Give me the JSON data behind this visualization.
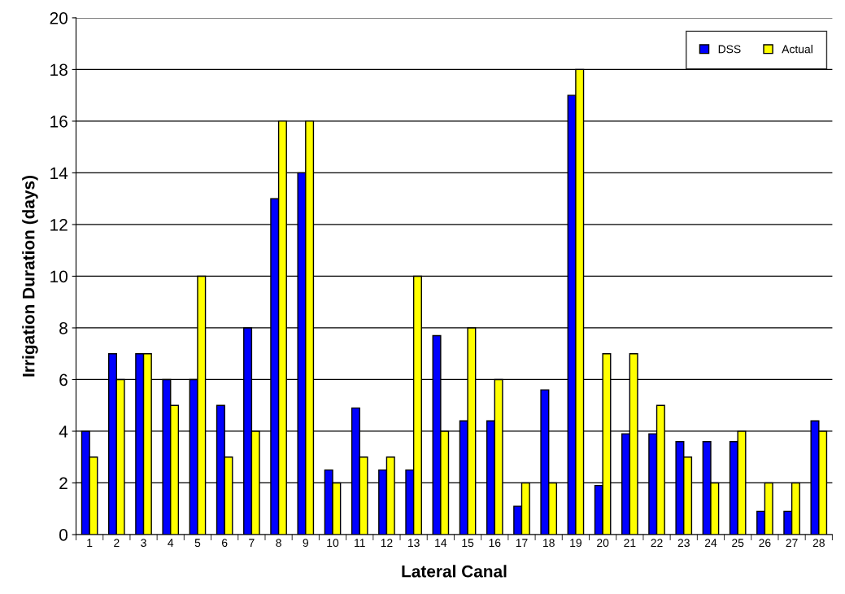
{
  "chart_data": {
    "type": "bar",
    "xlabel": "Lateral Canal",
    "ylabel": "Irrigation Duration (days)",
    "categories": [
      "1",
      "2",
      "3",
      "4",
      "5",
      "6",
      "7",
      "8",
      "9",
      "10",
      "11",
      "12",
      "13",
      "14",
      "15",
      "16",
      "17",
      "18",
      "19",
      "20",
      "21",
      "22",
      "23",
      "24",
      "25",
      "26",
      "27",
      "28"
    ],
    "series": [
      {
        "name": "DSS",
        "color": "#0000ff",
        "values": [
          4,
          7,
          7,
          6,
          6,
          5,
          8,
          13,
          14,
          2.5,
          4.9,
          2.5,
          2.5,
          7.7,
          4.4,
          4.4,
          1.1,
          5.6,
          17,
          1.9,
          3.9,
          3.9,
          3.6,
          3.6,
          3.6,
          0.9,
          0.9,
          4.4
        ]
      },
      {
        "name": "Actual",
        "color": "#ffff00",
        "values": [
          3,
          6,
          7,
          5,
          10,
          3,
          4,
          16,
          16,
          2,
          3,
          3,
          10,
          4,
          8,
          6,
          2,
          2,
          18,
          7,
          7,
          5,
          3,
          2,
          4,
          2,
          2,
          4
        ]
      }
    ],
    "ylim": [
      0,
      20
    ],
    "yticks": [
      0,
      2,
      4,
      6,
      8,
      10,
      12,
      14,
      16,
      18,
      20
    ],
    "grid": "y",
    "legend": "top right"
  }
}
